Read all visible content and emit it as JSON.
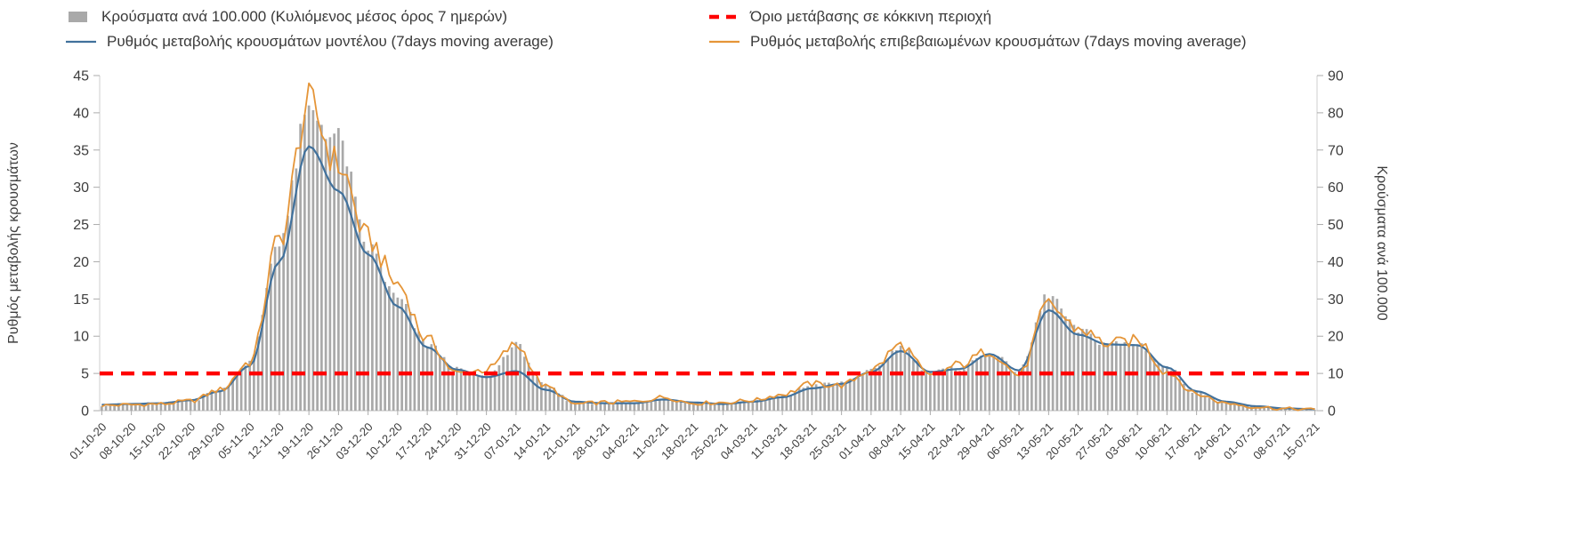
{
  "chart_data": {
    "type": "bar",
    "subtype": "combo: daily gray bars (right axis) + two moving-average lines (left axis) + horizontal red dashed threshold; weekly x tick labels rotated 45deg",
    "background": "#ffffff",
    "grid": false,
    "legend_position": "top",
    "categories": [
      "01-10-20",
      "08-10-20",
      "15-10-20",
      "22-10-20",
      "29-10-20",
      "05-11-20",
      "12-11-20",
      "19-11-20",
      "26-11-20",
      "03-12-20",
      "10-12-20",
      "17-12-20",
      "24-12-20",
      "31-12-20",
      "07-01-21",
      "14-01-21",
      "21-01-21",
      "28-01-21",
      "04-02-21",
      "11-02-21",
      "18-02-21",
      "25-02-21",
      "04-03-21",
      "11-03-21",
      "18-03-21",
      "25-03-21",
      "01-04-21",
      "08-04-21",
      "15-04-21",
      "22-04-21",
      "29-04-21",
      "06-05-21",
      "13-05-21",
      "20-05-21",
      "27-05-21",
      "03-06-21",
      "10-06-21",
      "17-06-21",
      "24-06-21",
      "01-07-21",
      "08-07-21",
      "15-07-21"
    ],
    "series": [
      {
        "name": "Κρούσματα ανά 100.000 (Κυλιόμενος μέσος όρος 7 ημερών)",
        "kind": "bar",
        "axis": "right",
        "color": "#a9a9a9",
        "values": [
          1.5,
          1.8,
          2.0,
          2.6,
          5.5,
          13,
          46,
          80,
          73,
          44,
          30,
          18,
          11,
          9,
          17.5,
          6.5,
          2.2,
          2.0,
          2.0,
          3.2,
          2.2,
          2.0,
          2.5,
          3.8,
          6.8,
          7.4,
          10.5,
          17,
          10.4,
          11.4,
          15.4,
          10.6,
          31,
          21.5,
          18,
          18,
          11.5,
          5,
          2.2,
          1.1,
          0.5,
          0.3
        ]
      },
      {
        "name": "Όριο μετάβασης σε κόκκινη περιοχή",
        "kind": "threshold",
        "axis": "left",
        "color": "#ff0000",
        "value": 5
      },
      {
        "name": "Ρυθμός μεταβολής κρουσμάτων μοντέλου (7days moving average)",
        "kind": "line",
        "axis": "left",
        "color": "#41719c",
        "values": [
          0.8,
          0.9,
          1.0,
          1.4,
          2.6,
          6.0,
          20,
          35.5,
          29.5,
          21,
          14,
          8.5,
          5.5,
          4.5,
          5.3,
          2.8,
          1.2,
          1.0,
          1.0,
          1.5,
          1.1,
          0.9,
          1.2,
          1.8,
          3.0,
          3.6,
          5.2,
          8.0,
          5.2,
          5.6,
          7.6,
          5.4,
          13.5,
          10.2,
          8.9,
          8.8,
          5.8,
          2.6,
          1.2,
          0.6,
          0.3,
          0.2
        ]
      },
      {
        "name": "Ρυθμός μεταβολής επιβεβαιωμένων κρουσμάτων (7days moving average)",
        "kind": "line",
        "axis": "left",
        "color": "#e59538",
        "values": [
          0.7,
          0.8,
          0.9,
          1.3,
          2.8,
          6.5,
          23,
          41,
          33,
          23,
          17,
          9.5,
          5.0,
          5.5,
          8.8,
          3.2,
          0.9,
          1.1,
          1.2,
          1.8,
          1.0,
          1.1,
          1.4,
          2.2,
          3.6,
          3.4,
          5.5,
          8.8,
          4.6,
          6.2,
          8.0,
          4.8,
          14.2,
          11.0,
          9.0,
          9.4,
          5.2,
          2.2,
          1.0,
          0.5,
          0.25,
          0.15
        ]
      }
    ],
    "left_axis": {
      "title": "Ρυθμός μεταβολής κρουσμάτων",
      "min": 0,
      "max": 45,
      "ticks": [
        0,
        5,
        10,
        15,
        20,
        25,
        30,
        35,
        40,
        45
      ]
    },
    "right_axis": {
      "title": "Κρούσματα ανά 100.000",
      "min": 0,
      "max": 90,
      "ticks": [
        0,
        10,
        20,
        30,
        40,
        50,
        60,
        70,
        80,
        90
      ]
    }
  }
}
